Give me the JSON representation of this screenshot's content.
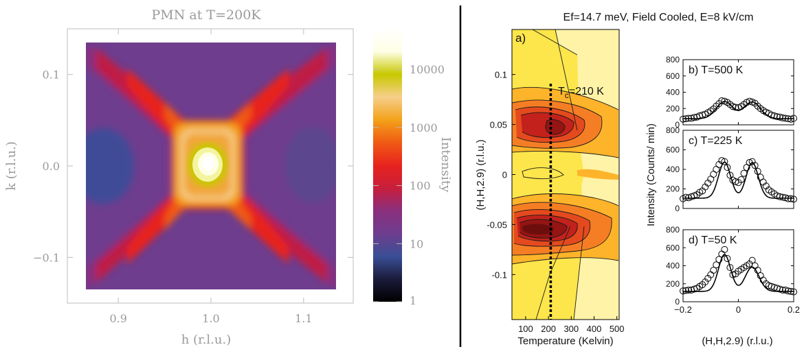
{
  "colors": {
    "left_text": "#9a9a9a",
    "colormap": [
      "#000000",
      "#1b1b3c",
      "#3a4f96",
      "#6e3d8e",
      "#8a2f7e",
      "#c81e3c",
      "#e8231e",
      "#f05a14",
      "#f3a21a",
      "#f6cf8a",
      "#c8c800",
      "#ffffe6",
      "#ffffff"
    ],
    "contour_fill": [
      "#fff3a8",
      "#fde64b",
      "#fdb42a",
      "#f57e24",
      "#e44a1e",
      "#c2221b",
      "#941513",
      "#6d0e0c"
    ]
  },
  "left_plot": {
    "title": "PMN at T=200K",
    "xlabel": "h (r.l.u.)",
    "ylabel": "k (r.l.u.)",
    "colorbar_label": "Intensity",
    "x_ticks": [
      "0.9",
      "1.0",
      "1.1"
    ],
    "y_ticks": [
      "0.1",
      "0.0",
      "−0.1"
    ],
    "colorbar_ticks": [
      "10000",
      "1000",
      "100",
      "10",
      "1"
    ]
  },
  "right_header": "Ef=14.7 meV, Field Cooled, E=8 kV/cm",
  "panel_a": {
    "label": "a)",
    "xlabel": "Temperature (Kelvin)",
    "ylabel": "(H,H,2.9) (r.l.u.)",
    "tc_main": "T",
    "tc_sub": "c",
    "tc_rest": "=210 K",
    "x_ticks": [
      "100",
      "200",
      "300",
      "400",
      "500"
    ],
    "y_ticks": [
      "0.1",
      "0.05",
      "0",
      "-0.05",
      "-0.1"
    ]
  },
  "panels_right": {
    "ylabel": "Intensity (Counts/ min)",
    "xlabel": "(H,H,2.9) (r.l.u.)",
    "x_ticks": [
      "−0.2",
      "0",
      "0.2"
    ],
    "y_ticks": [
      "800",
      "600",
      "400",
      "200",
      "0"
    ],
    "panels": [
      {
        "label": "b) T=500 K"
      },
      {
        "label": "c) T=225 K"
      },
      {
        "label": "d) T=50 K"
      }
    ]
  },
  "chart_data": [
    {
      "type": "heatmap",
      "title": "PMN at T=200K",
      "xlabel": "h (r.l.u.)",
      "ylabel": "k (r.l.u.)",
      "xlim": [
        0.865,
        1.135
      ],
      "ylim": [
        -0.135,
        0.135
      ],
      "colorbar": {
        "label": "Intensity",
        "scale": "log",
        "range": [
          1,
          50000
        ]
      },
      "peak": {
        "h": 1.0,
        "k": 0.0,
        "intensity": 30000
      }
    },
    {
      "type": "heatmap",
      "subtype": "contour",
      "label": "a)",
      "xlabel": "Temperature (Kelvin)",
      "ylabel": "(H,H,2.9) (r.l.u.)",
      "xlim": [
        40,
        510
      ],
      "ylim": [
        -0.145,
        0.145
      ],
      "vline": {
        "x": 210,
        "label": "Tc=210 K"
      },
      "contour_levels": [
        50,
        100,
        150,
        200,
        250,
        300,
        400,
        500
      ],
      "peaks": [
        {
          "T": 210,
          "q": 0.05,
          "intensity": 480
        },
        {
          "T": 110,
          "q": -0.05,
          "intensity": 560
        }
      ]
    },
    {
      "type": "scatter",
      "title": "b) T=500 K",
      "xlabel": "(H,H,2.9) (r.l.u.)",
      "ylabel": "Intensity (Counts/ min)",
      "xlim": [
        -0.2,
        0.2
      ],
      "ylim": [
        0,
        800
      ],
      "x": [
        -0.2,
        -0.19,
        -0.18,
        -0.17,
        -0.16,
        -0.15,
        -0.14,
        -0.13,
        -0.12,
        -0.11,
        -0.1,
        -0.09,
        -0.08,
        -0.07,
        -0.06,
        -0.05,
        -0.04,
        -0.03,
        -0.02,
        -0.01,
        0.0,
        0.01,
        0.02,
        0.03,
        0.04,
        0.05,
        0.06,
        0.07,
        0.08,
        0.09,
        0.1,
        0.11,
        0.12,
        0.13,
        0.14,
        0.15,
        0.16,
        0.17,
        0.18,
        0.19,
        0.2
      ],
      "y": [
        70,
        75,
        80,
        80,
        90,
        95,
        110,
        120,
        130,
        150,
        170,
        195,
        230,
        260,
        295,
        290,
        275,
        250,
        225,
        215,
        210,
        225,
        250,
        275,
        290,
        280,
        265,
        230,
        200,
        175,
        155,
        140,
        120,
        110,
        100,
        95,
        85,
        80,
        75,
        70,
        80
      ],
      "fit_peaks": [
        {
          "center": -0.05,
          "height": 210,
          "sigma": 0.03
        },
        {
          "center": 0.05,
          "height": 205,
          "sigma": 0.03
        }
      ],
      "fit_background": 75
    },
    {
      "type": "scatter",
      "title": "c) T=225 K",
      "xlabel": "(H,H,2.9) (r.l.u.)",
      "ylabel": "Intensity (Counts/ min)",
      "xlim": [
        -0.2,
        0.2
      ],
      "ylim": [
        0,
        800
      ],
      "x": [
        -0.2,
        -0.19,
        -0.18,
        -0.17,
        -0.16,
        -0.15,
        -0.14,
        -0.13,
        -0.12,
        -0.11,
        -0.1,
        -0.09,
        -0.08,
        -0.07,
        -0.06,
        -0.05,
        -0.04,
        -0.03,
        -0.02,
        -0.01,
        0.0,
        0.01,
        0.02,
        0.03,
        0.04,
        0.05,
        0.06,
        0.07,
        0.08,
        0.09,
        0.1,
        0.11,
        0.12,
        0.13,
        0.14,
        0.15,
        0.16,
        0.17,
        0.18,
        0.19,
        0.2
      ],
      "y": [
        100,
        115,
        110,
        120,
        130,
        140,
        165,
        180,
        220,
        260,
        300,
        350,
        400,
        450,
        490,
        480,
        420,
        340,
        290,
        275,
        265,
        295,
        360,
        420,
        470,
        480,
        440,
        380,
        320,
        270,
        230,
        190,
        170,
        150,
        130,
        120,
        115,
        110,
        100,
        100,
        95
      ],
      "fit_peaks": [
        {
          "center": -0.05,
          "height": 370,
          "sigma": 0.022
        },
        {
          "center": 0.05,
          "height": 365,
          "sigma": 0.022
        }
      ],
      "fit_background": 105
    },
    {
      "type": "scatter",
      "title": "d) T=50 K",
      "xlabel": "(H,H,2.9) (r.l.u.)",
      "ylabel": "Intensity (Counts/ min)",
      "xlim": [
        -0.2,
        0.2
      ],
      "ylim": [
        0,
        800
      ],
      "x": [
        -0.2,
        -0.19,
        -0.18,
        -0.17,
        -0.16,
        -0.15,
        -0.14,
        -0.13,
        -0.12,
        -0.11,
        -0.1,
        -0.09,
        -0.08,
        -0.07,
        -0.06,
        -0.05,
        -0.04,
        -0.03,
        -0.02,
        -0.01,
        0.0,
        0.01,
        0.02,
        0.03,
        0.04,
        0.05,
        0.06,
        0.07,
        0.08,
        0.09,
        0.1,
        0.11,
        0.12,
        0.13,
        0.14,
        0.15,
        0.16,
        0.17,
        0.18,
        0.19,
        0.2
      ],
      "y": [
        120,
        125,
        130,
        130,
        140,
        150,
        170,
        190,
        220,
        260,
        300,
        350,
        410,
        470,
        530,
        580,
        480,
        380,
        300,
        310,
        340,
        360,
        380,
        400,
        420,
        460,
        400,
        350,
        290,
        240,
        200,
        180,
        170,
        160,
        150,
        140,
        130,
        130,
        120,
        115,
        110
      ],
      "fit_peaks": [
        {
          "center": -0.05,
          "height": 410,
          "sigma": 0.022
        },
        {
          "center": 0.05,
          "height": 270,
          "sigma": 0.025
        }
      ],
      "fit_background": 115
    }
  ]
}
